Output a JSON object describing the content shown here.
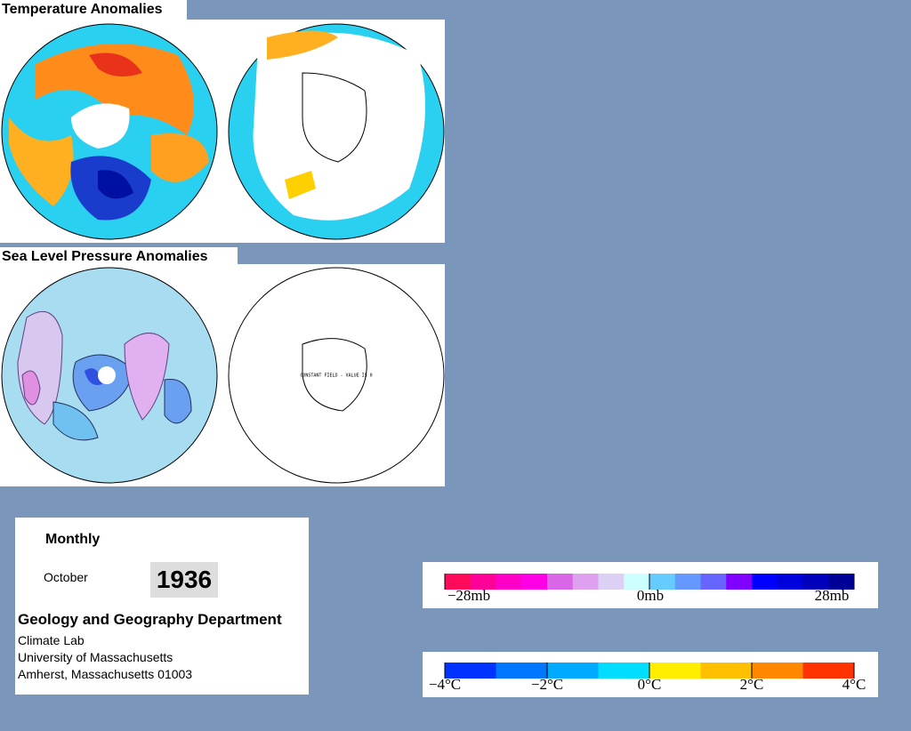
{
  "panels": [
    {
      "title": "Temperature Anomalies"
    },
    {
      "title": "Sea Level Pressure Anomalies",
      "annotation": "CONSTANT FIELD - VALUE IS 0"
    }
  ],
  "info": {
    "period": "Monthly",
    "month": "October",
    "year": "1936",
    "department": "Geology and Geography Department",
    "lines": [
      "Climate Lab",
      "University of Massachusetts",
      "Amherst, Massachusetts 01003"
    ]
  },
  "legends": [
    {
      "colors": [
        "#ff0a5a",
        "#ff0099",
        "#ff00c8",
        "#ff00e6",
        "#d966e6",
        "#e0a0f0",
        "#dcd0f5",
        "#ccffff",
        "#66ccff",
        "#6699ff",
        "#6666ff",
        "#7f00ff",
        "#0000ff",
        "#0000dd",
        "#0000bb",
        "#000099"
      ],
      "labels": [
        "−28mb",
        "0mb",
        "28mb"
      ]
    },
    {
      "colors": [
        "#0033ff",
        "#0077ff",
        "#00aaff",
        "#00ddff",
        "#ffee00",
        "#ffc000",
        "#ff8800",
        "#ff3300"
      ],
      "labels": [
        "−4°C",
        "−2°C",
        "0°C",
        "2°C",
        "4°C"
      ]
    }
  ]
}
